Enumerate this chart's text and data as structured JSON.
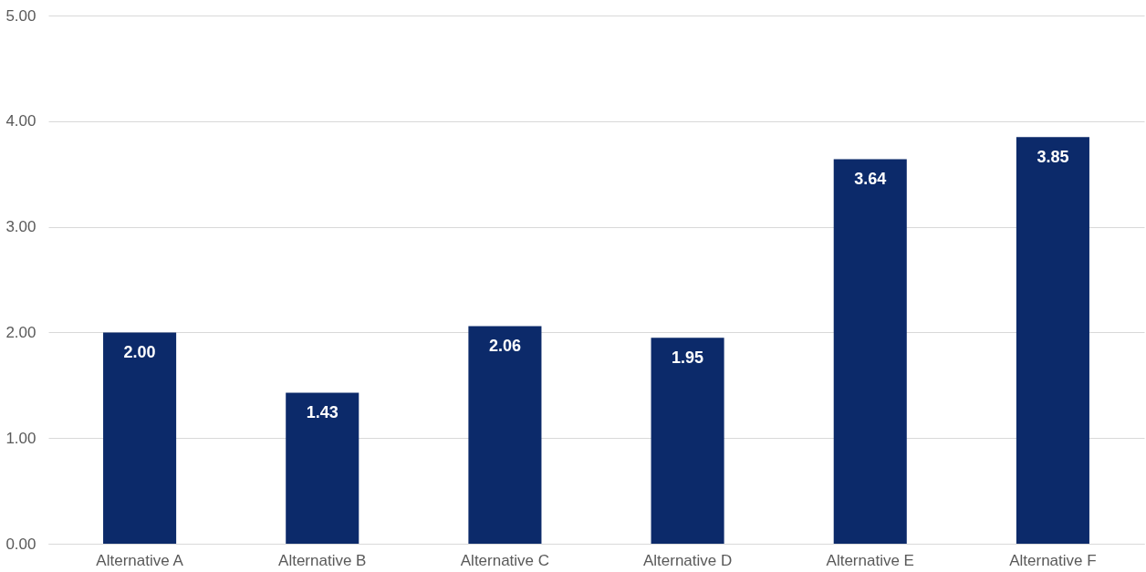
{
  "chart_data": {
    "type": "bar",
    "categories": [
      "Alternative A",
      "Alternative B",
      "Alternative C",
      "Alternative D",
      "Alternative E",
      "Alternative F"
    ],
    "series": [
      {
        "color": "#0c2a6a",
        "values": [
          2.0,
          1.43,
          2.06,
          1.95,
          3.64,
          3.85
        ],
        "value_labels": [
          "2.00",
          "1.43",
          "2.06",
          "1.95",
          "3.64",
          "3.85"
        ]
      }
    ],
    "ylim": [
      0,
      5
    ],
    "yticks": [
      {
        "value": 0,
        "label": "0.00"
      },
      {
        "value": 1,
        "label": "1.00"
      },
      {
        "value": 2,
        "label": "2.00"
      },
      {
        "value": 3,
        "label": "3.00"
      },
      {
        "value": 4,
        "label": "4.00"
      },
      {
        "value": 5,
        "label": "5.00"
      }
    ],
    "grid": "y"
  }
}
